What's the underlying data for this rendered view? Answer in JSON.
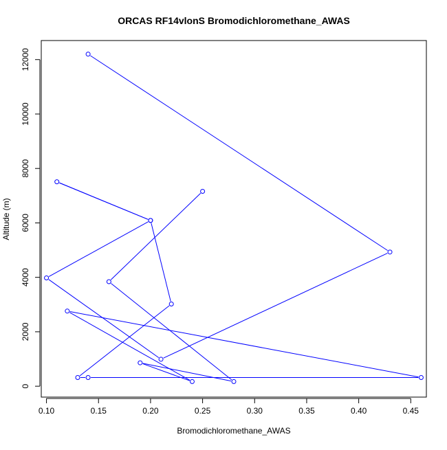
{
  "chart_data": {
    "type": "line",
    "title": "ORCAS RF14vlonS Bromodichloromethane_AWAS",
    "xlabel": "Bromodichloromethane_AWAS",
    "ylabel": "Altitude (m)",
    "xlim": [
      0.095,
      0.465
    ],
    "ylim": [
      -400,
      12700
    ],
    "x_ticks": [
      0.1,
      0.15,
      0.2,
      0.25,
      0.3,
      0.35,
      0.4,
      0.45
    ],
    "x_tick_labels": [
      "0.10",
      "0.15",
      "0.20",
      "0.25",
      "0.30",
      "0.35",
      "0.40",
      "0.45"
    ],
    "y_ticks": [
      0,
      2000,
      4000,
      6000,
      8000,
      10000,
      12000
    ],
    "y_tick_labels": [
      "0",
      "2000",
      "4000",
      "6000",
      "8000",
      "10000",
      "12000"
    ],
    "grid": false,
    "legend": "none",
    "series": [
      {
        "color": "#0000ff",
        "marker": "open-circle",
        "points": [
          {
            "x": 0.14,
            "y": 12200
          },
          {
            "x": 0.43,
            "y": 4930
          },
          {
            "x": 0.21,
            "y": 990
          },
          {
            "x": 0.1,
            "y": 3980
          },
          {
            "x": 0.2,
            "y": 6090
          },
          {
            "x": 0.11,
            "y": 7510
          },
          {
            "x": 0.2,
            "y": 6090
          },
          {
            "x": 0.22,
            "y": 3020
          },
          {
            "x": 0.13,
            "y": 320
          },
          {
            "x": 0.14,
            "y": 320
          },
          {
            "x": 0.46,
            "y": 320
          },
          {
            "x": 0.12,
            "y": 2760
          },
          {
            "x": 0.24,
            "y": 170
          },
          {
            "x": 0.19,
            "y": 860
          },
          {
            "x": 0.28,
            "y": 170
          },
          {
            "x": 0.16,
            "y": 3840
          },
          {
            "x": 0.25,
            "y": 7160
          }
        ]
      }
    ]
  }
}
